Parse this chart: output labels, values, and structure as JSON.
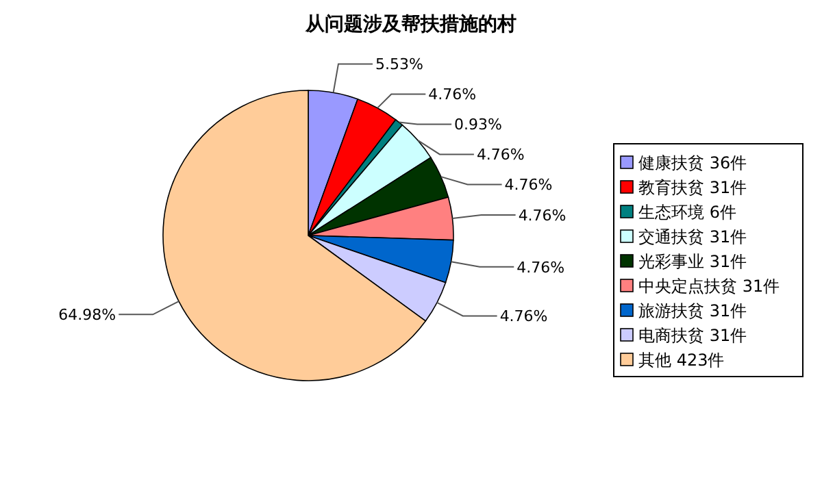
{
  "chart_data": {
    "type": "pie",
    "title": "从问题涉及帮扶措施的村",
    "categories": [
      "健康扶贫 36件",
      "教育扶贫 31件",
      "生态环境 6件",
      "交通扶贫 31件",
      "光彩事业 31件",
      "中央定点扶贫 31件",
      "旅游扶贫 31件",
      "电商扶贫 31件",
      "其他 423件"
    ],
    "values": [
      5.53,
      4.76,
      0.93,
      4.76,
      4.76,
      4.76,
      4.76,
      4.76,
      64.98
    ],
    "value_labels": [
      "5.53%",
      "4.76%",
      "0.93%",
      "4.76%",
      "4.76%",
      "4.76%",
      "4.76%",
      "4.76%",
      "64.98%"
    ],
    "colors": [
      "#9999ff",
      "#ff0000",
      "#008080",
      "#ccffff",
      "#003300",
      "#ff8080",
      "#0066cc",
      "#ccccff",
      "#ffcc99"
    ],
    "legend": "right"
  }
}
